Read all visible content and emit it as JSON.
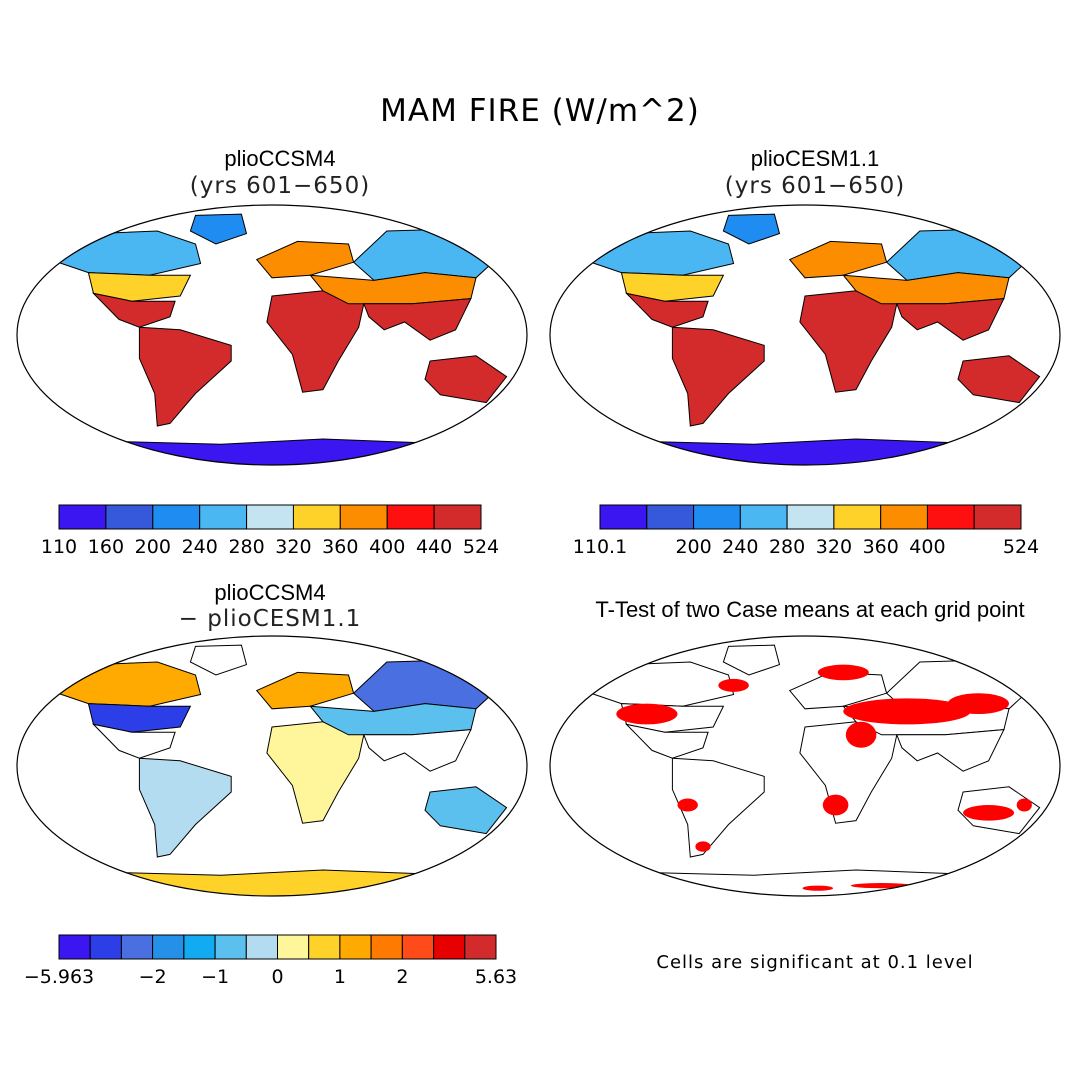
{
  "figure": {
    "title": "MAM FIRE (W/m^2)",
    "panels": [
      {
        "id": "ccsm4",
        "title": "plioCCSM4",
        "subtitle": "(yrs 601−650)"
      },
      {
        "id": "cesm",
        "title": "plioCESM1.1",
        "subtitle": "(yrs 601−650)"
      },
      {
        "id": "diff",
        "title": "plioCCSM4",
        "subtitle": "− plioCESM1.1"
      },
      {
        "id": "ttest",
        "title": "T-Test of two Case means at each grid point",
        "subtitle": ""
      }
    ],
    "note": "Cells are significant at 0.1 level"
  },
  "chart_data": [
    {
      "type": "heatmap",
      "title": "plioCCSM4 (yrs 601−650)",
      "colorbar": {
        "colors": [
          "#3b16f0",
          "#3659db",
          "#1e8cf0",
          "#4ab6f2",
          "#c4e4f2",
          "#ffd22a",
          "#fc8d00",
          "#ff1010",
          "#d32b2b"
        ],
        "labels": [
          "110",
          "160",
          "200",
          "240",
          "280",
          "320",
          "360",
          "400",
          "440",
          "524"
        ]
      },
      "regions": [
        {
          "name": "Antarctica",
          "level": 0
        },
        {
          "name": "Greenland",
          "level": 2
        },
        {
          "name": "Northern North America",
          "level": 3
        },
        {
          "name": "Central North America",
          "level": 5
        },
        {
          "name": "Southern United States",
          "level": 8
        },
        {
          "name": "South America",
          "level": 8
        },
        {
          "name": "Africa",
          "level": 8
        },
        {
          "name": "Europe",
          "level": 6
        },
        {
          "name": "Siberia",
          "level": 3
        },
        {
          "name": "Central Asia",
          "level": 6
        },
        {
          "name": "South Asia",
          "level": 8
        },
        {
          "name": "Australia",
          "level": 8
        }
      ]
    },
    {
      "type": "heatmap",
      "title": "plioCESM1.1 (yrs 601−650)",
      "colorbar": {
        "colors": [
          "#3b16f0",
          "#3659db",
          "#1e8cf0",
          "#4ab6f2",
          "#c4e4f2",
          "#ffd22a",
          "#fc8d00",
          "#ff1010",
          "#d32b2b"
        ],
        "labels": [
          "110.1",
          "200",
          "240",
          "280",
          "320",
          "360",
          "400",
          "524"
        ]
      },
      "regions": [
        {
          "name": "Antarctica",
          "level": 0
        },
        {
          "name": "Greenland",
          "level": 2
        },
        {
          "name": "Northern North America",
          "level": 3
        },
        {
          "name": "Central North America",
          "level": 5
        },
        {
          "name": "Southern United States",
          "level": 8
        },
        {
          "name": "South America",
          "level": 8
        },
        {
          "name": "Africa",
          "level": 8
        },
        {
          "name": "Europe",
          "level": 6
        },
        {
          "name": "Siberia",
          "level": 3
        },
        {
          "name": "Central Asia",
          "level": 6
        },
        {
          "name": "South Asia",
          "level": 8
        },
        {
          "name": "Australia",
          "level": 8
        }
      ]
    },
    {
      "type": "heatmap",
      "title": "plioCCSM4 − plioCESM1.1",
      "colorbar": {
        "colors": [
          "#3b16f0",
          "#2c3ee8",
          "#4a6fe0",
          "#2490e8",
          "#12aaf0",
          "#5cc0ee",
          "#b4dcf0",
          "#fff59a",
          "#ffd22a",
          "#ffaa00",
          "#ff7a00",
          "#ff4a1a",
          "#e60000",
          "#d32b2b"
        ],
        "labels": [
          "−5.963",
          "−2",
          "−1",
          "0",
          "1",
          "2",
          "5.63"
        ]
      },
      "regions": [
        {
          "name": "Antarctica",
          "level": 8
        },
        {
          "name": "Northern North America",
          "level": 9
        },
        {
          "name": "Central North America",
          "level": 1
        },
        {
          "name": "South America",
          "level": 6
        },
        {
          "name": "Africa",
          "level": 7
        },
        {
          "name": "Europe",
          "level": 9
        },
        {
          "name": "Siberia",
          "level": 2
        },
        {
          "name": "Central Asia",
          "level": 5
        },
        {
          "name": "Australia",
          "level": 5
        }
      ]
    },
    {
      "type": "heatmap",
      "title": "T-Test of two Case means at each grid point",
      "significant_color": "#ff0000",
      "significance_level": 0.1,
      "significant_regions": [
        "Eastern North America",
        "Northern Europe",
        "Central Asia",
        "Middle East",
        "Eastern Siberia",
        "Southern South America",
        "Southern Africa",
        "Australia",
        "Antarctic coast"
      ]
    }
  ]
}
